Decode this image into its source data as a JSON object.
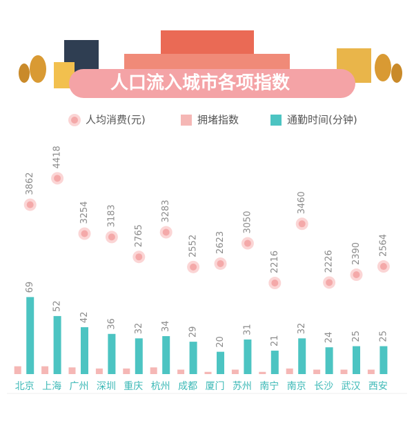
{
  "chart_data": {
    "type": "bar",
    "title": "人口流入城市各项指数",
    "categories": [
      "北京",
      "上海",
      "广州",
      "深圳",
      "重庆",
      "杭州",
      "成都",
      "厦门",
      "苏州",
      "南宁",
      "南京",
      "长沙",
      "武汉",
      "西安"
    ],
    "ylim": [
      0,
      230
    ],
    "y2lim": [
      300,
      5700
    ],
    "series": [
      {
        "name": "人均消费(元)",
        "type": "scatter",
        "axis": "y2",
        "color": "#f4a9a9",
        "values": [
          3862,
          4418,
          3254,
          3183,
          2765,
          3283,
          2552,
          2623,
          3050,
          2216,
          3460,
          2226,
          2390,
          2564
        ]
      },
      {
        "name": "拥堵指数",
        "type": "bar",
        "color": "#f5b7b5",
        "values": [
          7,
          7,
          6,
          5,
          5,
          6,
          4,
          2,
          4,
          2,
          5,
          4,
          4,
          4
        ]
      },
      {
        "name": "通勤时间(分钟)",
        "type": "bar",
        "color": "#4cc4c2",
        "values": [
          69,
          52,
          42,
          36,
          32,
          34,
          29,
          20,
          31,
          21,
          32,
          24,
          25,
          25
        ]
      }
    ]
  }
}
